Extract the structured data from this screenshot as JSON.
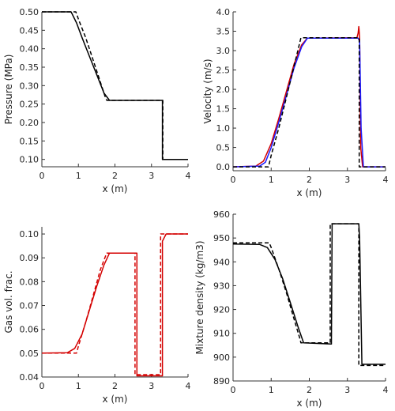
{
  "chart_data": [
    {
      "type": "line",
      "xlabel": "x (m)",
      "ylabel": "Pressure (MPa)",
      "xlim": [
        0,
        4
      ],
      "ylim": [
        0.08,
        0.5
      ],
      "xticks": [
        "0",
        "1",
        "2",
        "3",
        "4"
      ],
      "yticks": [
        "0.10",
        "0.15",
        "0.20",
        "0.25",
        "0.30",
        "0.35",
        "0.40",
        "0.45",
        "0.50"
      ],
      "grid": false,
      "series": [
        {
          "style": "solid",
          "color": "#000000",
          "x": [
            0,
            0.8,
            0.95,
            1.1,
            1.3,
            1.5,
            1.7,
            1.85,
            3.3,
            3.3,
            4
          ],
          "y": [
            0.5,
            0.5,
            0.47,
            0.43,
            0.38,
            0.33,
            0.28,
            0.26,
            0.26,
            0.1,
            0.1
          ]
        },
        {
          "style": "dashed",
          "color": "#000000",
          "x": [
            0,
            0.93,
            1.0,
            1.2,
            1.4,
            1.6,
            1.75,
            1.78,
            3.31,
            3.31,
            4
          ],
          "y": [
            0.5,
            0.5,
            0.48,
            0.43,
            0.37,
            0.31,
            0.265,
            0.26,
            0.26,
            0.1,
            0.1
          ]
        }
      ]
    },
    {
      "type": "line",
      "xlabel": "x (m)",
      "ylabel": "Velocity (m/s)",
      "xlim": [
        0,
        4
      ],
      "ylim": [
        -0.1,
        4.0
      ],
      "xticks": [
        "0",
        "1",
        "2",
        "3",
        "4"
      ],
      "yticks": [
        "0.0",
        "0.5",
        "1.0",
        "1.5",
        "2.0",
        "2.5",
        "3.0",
        "3.5",
        "4.0"
      ],
      "grid": false,
      "series": [
        {
          "style": "solid",
          "color": "#d40000",
          "x": [
            0,
            0.6,
            0.8,
            1.0,
            1.2,
            1.4,
            1.6,
            1.8,
            1.95,
            3.25,
            3.28,
            3.3,
            3.32,
            3.35,
            3.4,
            4
          ],
          "y": [
            0.0,
            0.02,
            0.15,
            0.6,
            1.25,
            1.95,
            2.65,
            3.15,
            3.32,
            3.33,
            3.45,
            3.62,
            3.35,
            0.5,
            0.0,
            0.0
          ]
        },
        {
          "style": "solid",
          "color": "#1a1aff",
          "x": [
            0,
            0.7,
            0.85,
            1.0,
            1.2,
            1.4,
            1.6,
            1.8,
            1.95,
            3.28,
            3.32,
            3.36,
            3.42,
            4
          ],
          "y": [
            0.0,
            0.02,
            0.12,
            0.5,
            1.15,
            1.85,
            2.55,
            3.1,
            3.32,
            3.32,
            3.25,
            1.0,
            0.0,
            0.0
          ]
        },
        {
          "style": "dashed",
          "color": "#000000",
          "x": [
            0,
            0.93,
            1.0,
            1.2,
            1.4,
            1.6,
            1.75,
            1.78,
            3.31,
            3.31,
            4
          ],
          "y": [
            0.0,
            0.0,
            0.3,
            1.0,
            1.8,
            2.6,
            3.2,
            3.33,
            3.33,
            0.0,
            0.0
          ]
        }
      ]
    },
    {
      "type": "line",
      "xlabel": "x (m)",
      "ylabel": "Gas vol. frac.",
      "xlim": [
        0,
        4
      ],
      "ylim": [
        0.04,
        0.103
      ],
      "xticks": [
        "0",
        "1",
        "2",
        "3",
        "4"
      ],
      "yticks": [
        "0.04",
        "0.05",
        "0.06",
        "0.07",
        "0.08",
        "0.09",
        "0.10"
      ],
      "grid": false,
      "series": [
        {
          "style": "solid",
          "color": "#d40000",
          "x": [
            0,
            0.7,
            0.9,
            1.1,
            1.3,
            1.5,
            1.7,
            1.85,
            2.6,
            2.6,
            3.3,
            3.3,
            3.4,
            4
          ],
          "y": [
            0.05,
            0.0502,
            0.052,
            0.058,
            0.068,
            0.078,
            0.087,
            0.092,
            0.092,
            0.0405,
            0.0405,
            0.097,
            0.1,
            0.1
          ]
        },
        {
          "style": "dashed",
          "color": "#d40000",
          "x": [
            0,
            0.95,
            1.0,
            1.2,
            1.4,
            1.6,
            1.75,
            1.78,
            2.55,
            2.55,
            3.25,
            3.25,
            4
          ],
          "y": [
            0.05,
            0.05,
            0.053,
            0.063,
            0.074,
            0.085,
            0.091,
            0.092,
            0.092,
            0.041,
            0.041,
            0.1,
            0.1
          ]
        }
      ]
    },
    {
      "type": "line",
      "xlabel": "x (m)",
      "ylabel": "Mixture density (kg/m3)",
      "xlim": [
        0,
        4
      ],
      "ylim": [
        890,
        960
      ],
      "xticks": [
        "0",
        "1",
        "2",
        "3",
        "4"
      ],
      "yticks": [
        "890",
        "900",
        "910",
        "920",
        "930",
        "940",
        "950",
        "960"
      ],
      "grid": false,
      "series": [
        {
          "style": "solid",
          "color": "#000000",
          "x": [
            0,
            0.7,
            0.9,
            1.1,
            1.3,
            1.5,
            1.7,
            1.85,
            2.58,
            2.6,
            3.3,
            3.32,
            3.38,
            4
          ],
          "y": [
            947.5,
            947.3,
            946,
            941,
            933,
            923,
            913,
            906,
            905.5,
            956,
            956,
            950,
            897,
            897
          ]
        },
        {
          "style": "dashed",
          "color": "#000000",
          "x": [
            0,
            0.95,
            1.0,
            1.2,
            1.4,
            1.6,
            1.75,
            1.78,
            2.55,
            2.55,
            3.3,
            3.3,
            4
          ],
          "y": [
            948,
            948,
            946,
            937,
            927,
            916,
            908,
            906,
            906,
            956,
            956,
            896.5,
            896.5
          ]
        }
      ]
    }
  ]
}
